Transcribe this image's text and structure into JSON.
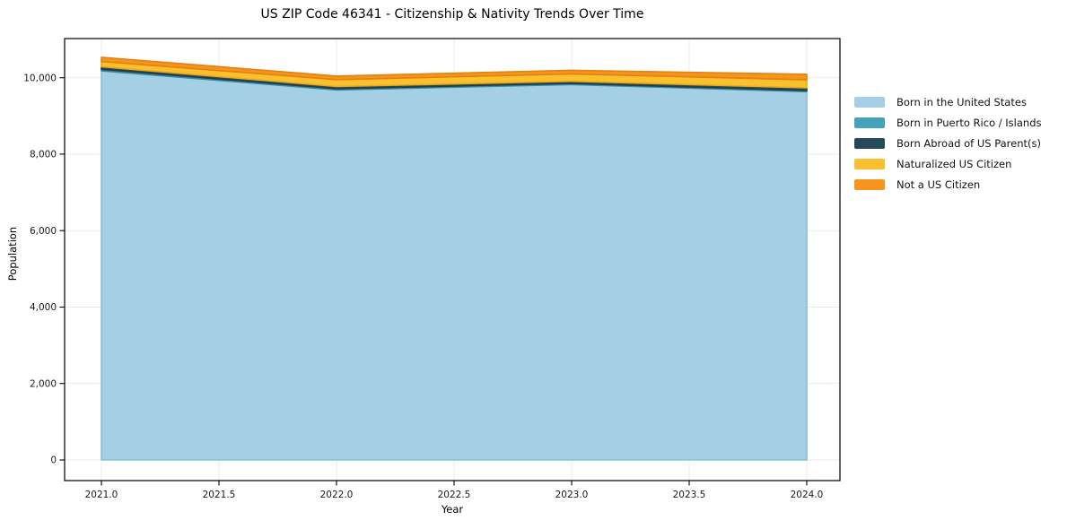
{
  "chart_data": {
    "type": "area",
    "stacked": true,
    "title": "US ZIP Code 46341 - Citizenship & Nativity Trends Over Time",
    "xlabel": "Year",
    "ylabel": "Population",
    "x": [
      2021,
      2022,
      2023,
      2024
    ],
    "x_tick_values": [
      2021.0,
      2021.5,
      2022.0,
      2022.5,
      2023.0,
      2023.5,
      2024.0
    ],
    "x_tick_labels": [
      "2021.0",
      "2021.5",
      "2022.0",
      "2022.5",
      "2023.0",
      "2023.5",
      "2024.0"
    ],
    "y_tick_values": [
      0,
      2000,
      4000,
      6000,
      8000,
      10000
    ],
    "y_tick_labels": [
      "0",
      "2,000",
      "4,000",
      "6,000",
      "8,000",
      "10,000"
    ],
    "xlim": [
      2020.84,
      2024.14
    ],
    "ylim": [
      -540,
      11025
    ],
    "grid": true,
    "grid_color": "#ebebeb",
    "legend_position": "right-outside",
    "series": [
      {
        "name": "Born in the United States",
        "color": "#a4cfe4",
        "edge": "#8abfd9",
        "values": [
          10180,
          9680,
          9820,
          9635
        ]
      },
      {
        "name": "Born in Puerto Rico / Islands",
        "color": "#44a2bb",
        "edge": "#388ba1",
        "values": [
          40,
          30,
          30,
          30
        ]
      },
      {
        "name": "Born Abroad of US Parent(s)",
        "color": "#28495b",
        "edge": "#203c4b",
        "values": [
          65,
          60,
          55,
          70
        ]
      },
      {
        "name": "Naturalized US Citizen",
        "color": "#fbc02d",
        "edge": "#eaa916",
        "values": [
          140,
          180,
          195,
          210
        ]
      },
      {
        "name": "Not a US Citizen",
        "color": "#f7941e",
        "edge": "#e28210",
        "values": [
          110,
          95,
          95,
          145
        ]
      }
    ]
  }
}
